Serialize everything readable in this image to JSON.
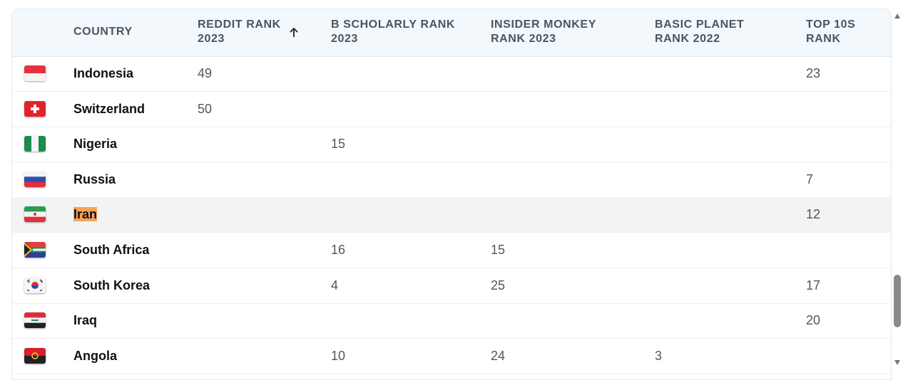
{
  "table": {
    "columns": [
      "COUNTRY",
      "REDDIT RANK 2023",
      "B SCHOLARLY RANK 2023",
      "INSIDER MONKEY RANK 2023",
      "BASIC PLANET RANK 2022",
      "TOP 10S RANK"
    ],
    "rows": [
      [
        "Indonesia",
        49,
        null,
        null,
        null,
        23
      ],
      [
        "Switzerland",
        50,
        null,
        null,
        null,
        null
      ],
      [
        "Nigeria",
        null,
        15,
        null,
        null,
        null
      ],
      [
        "Russia",
        null,
        null,
        null,
        null,
        7
      ],
      [
        "Iran",
        null,
        null,
        null,
        null,
        12
      ],
      [
        "South Africa",
        null,
        16,
        15,
        null,
        null
      ],
      [
        "South Korea",
        null,
        4,
        25,
        null,
        17
      ],
      [
        "Iraq",
        null,
        null,
        null,
        null,
        20
      ],
      [
        "Angola",
        null,
        10,
        24,
        3,
        null
      ]
    ]
  }
}
